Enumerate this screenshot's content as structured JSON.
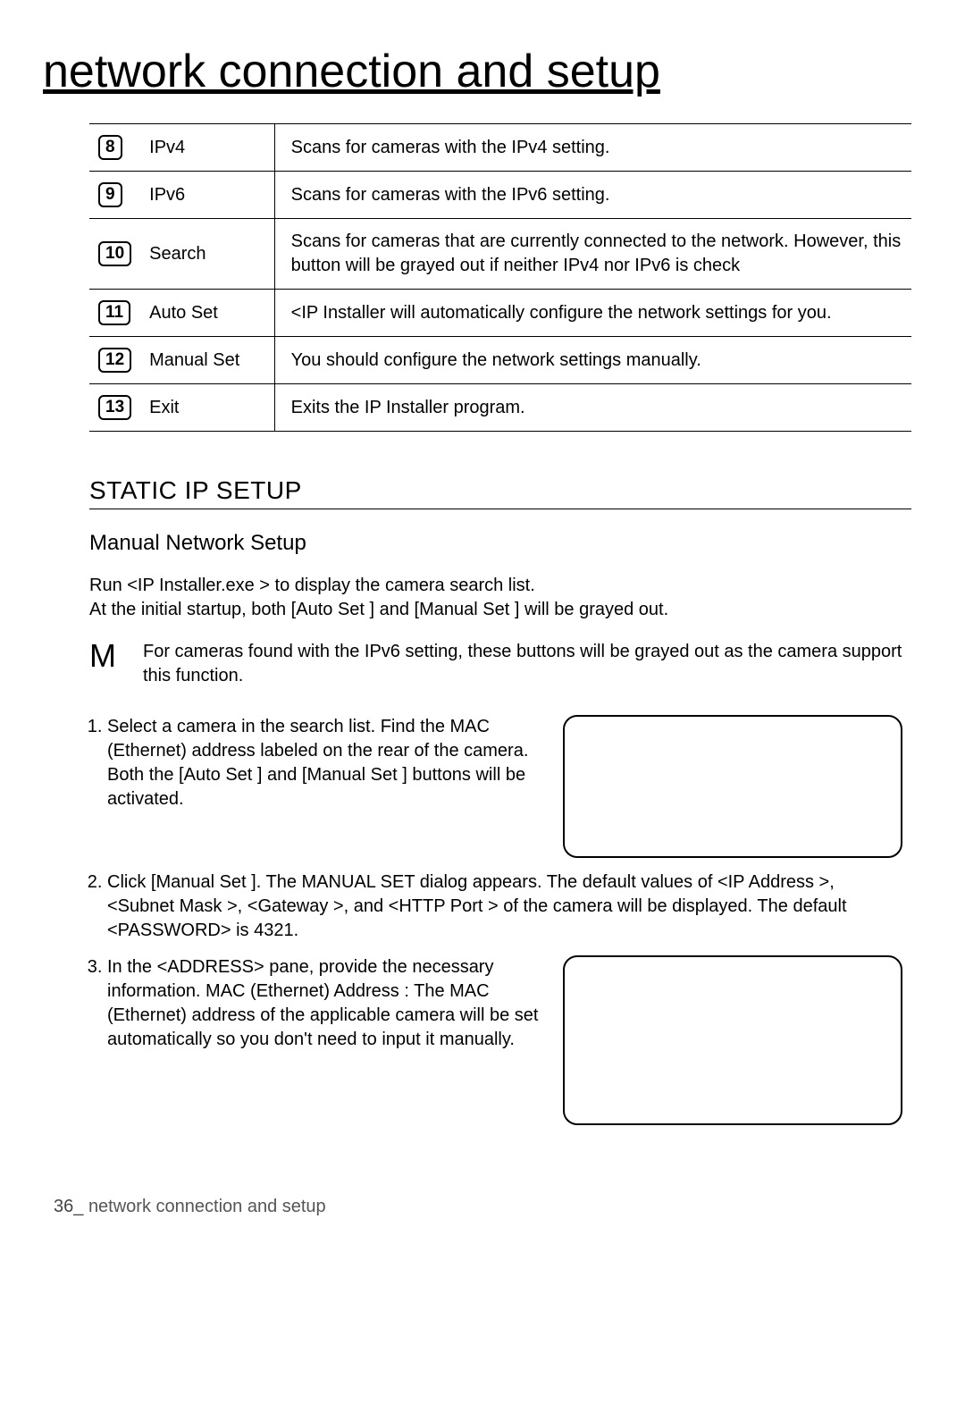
{
  "page": {
    "title": "network connection and setup",
    "footer_page": "36_",
    "footer_text": "network connection and setup"
  },
  "table": {
    "rows": [
      {
        "num": "8",
        "name": "IPv4",
        "desc": "Scans for cameras with the IPv4 setting."
      },
      {
        "num": "9",
        "name": "IPv6",
        "desc": "Scans for cameras with the IPv6 setting."
      },
      {
        "num": "10",
        "name": "Search",
        "desc": "Scans for cameras that are currently connected to the network. However, this button will be grayed out if neither IPv4 nor IPv6 is check"
      },
      {
        "num": "11",
        "name": "Auto Set",
        "desc": "<IP Installer will automatically configure the network settings for you."
      },
      {
        "num": "12",
        "name": "Manual Set",
        "desc": "You should configure the network settings manually."
      },
      {
        "num": "13",
        "name": "Exit",
        "desc": "Exits the IP Installer program."
      }
    ]
  },
  "section": {
    "title": "STATIC IP SETUP",
    "subtitle": "Manual Network Setup",
    "intro_line1": "Run <IP Installer.exe > to display the camera search list.",
    "intro_line2": "At the initial startup, both [Auto Set ] and [Manual Set ] will be grayed out.",
    "note_letter": "M",
    "note_text": "For cameras found with the IPv6 setting, these buttons will be grayed out as the camera support this function.",
    "steps": {
      "s1": "Select a camera in the search list. Find the MAC (Ethernet) address labeled on the rear of the camera. Both the [Auto Set ] and [Manual Set ] buttons will be activated.",
      "s2a": "Click [Manual Set ]. The MANUAL SET dialog appears. The default values of <IP Address >,",
      "s2b": "<Subnet Mask >, <Gateway >, and <HTTP Port > of the camera will be displayed. The default <PASSWORD> is 4321.",
      "s3": "In the <ADDRESS> pane, provide the necessary information. MAC (Ethernet) Address : The MAC (Ethernet) address of the applicable camera will be set automatically so you don't need to input it manually."
    }
  }
}
